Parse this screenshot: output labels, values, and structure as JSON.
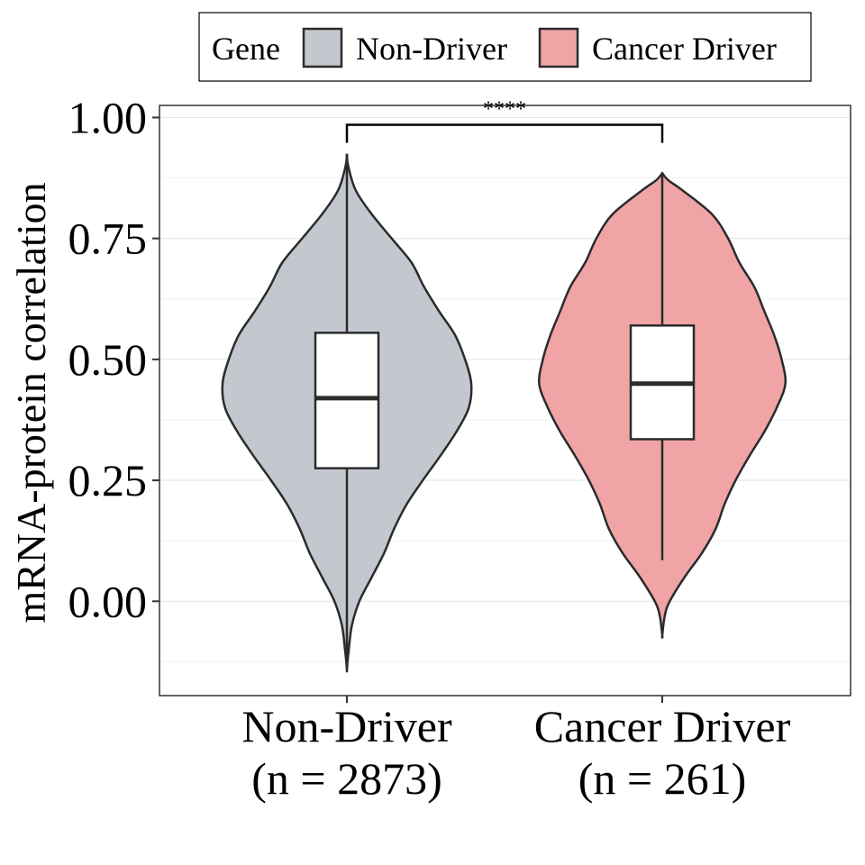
{
  "chart_data": {
    "type": "violin",
    "ylabel": "mRNA-protein correlation",
    "xlabel": "",
    "ylim": [
      -0.195,
      1.025
    ],
    "yticks": [
      0.0,
      0.25,
      0.5,
      0.75,
      1.0
    ],
    "ytick_labels": [
      "0.00",
      "0.25",
      "0.50",
      "0.75",
      "1.00"
    ],
    "grid": true,
    "legend": {
      "placement": "top",
      "title": "Gene",
      "entries": [
        {
          "label": "Non-Driver",
          "color": "#c3c8cf"
        },
        {
          "label": "Cancer Driver",
          "color": "#f0a4a6"
        }
      ]
    },
    "categories": [
      {
        "label_line1": "Non-Driver",
        "label_line2": "(n = 2873)"
      },
      {
        "label_line1": "Cancer Driver",
        "label_line2": "(n = 261)"
      }
    ],
    "series": [
      {
        "name": "Non-Driver",
        "color": "#c3c8cf",
        "n": 2873,
        "min": -0.14,
        "max": 0.925,
        "q1": 0.275,
        "median": 0.42,
        "q3": 0.555,
        "whisker_low": -0.14,
        "whisker_high": 0.925,
        "density": [
          [
            0.925,
            0.0
          ],
          [
            0.9,
            0.01
          ],
          [
            0.85,
            0.07
          ],
          [
            0.8,
            0.2
          ],
          [
            0.75,
            0.36
          ],
          [
            0.7,
            0.52
          ],
          [
            0.65,
            0.62
          ],
          [
            0.6,
            0.74
          ],
          [
            0.55,
            0.87
          ],
          [
            0.5,
            0.95
          ],
          [
            0.45,
            1.0
          ],
          [
            0.4,
            0.98
          ],
          [
            0.35,
            0.88
          ],
          [
            0.3,
            0.75
          ],
          [
            0.25,
            0.61
          ],
          [
            0.2,
            0.48
          ],
          [
            0.15,
            0.38
          ],
          [
            0.1,
            0.3
          ],
          [
            0.05,
            0.2
          ],
          [
            0.0,
            0.1
          ],
          [
            -0.05,
            0.04
          ],
          [
            -0.1,
            0.015
          ],
          [
            -0.14,
            0.0
          ]
        ]
      },
      {
        "name": "Cancer Driver",
        "color": "#f0a4a6",
        "n": 261,
        "min": -0.07,
        "max": 0.885,
        "q1": 0.335,
        "median": 0.45,
        "q3": 0.57,
        "whisker_low": 0.085,
        "whisker_high": 0.885,
        "density": [
          [
            0.885,
            0.0
          ],
          [
            0.87,
            0.05
          ],
          [
            0.85,
            0.16
          ],
          [
            0.8,
            0.4
          ],
          [
            0.75,
            0.53
          ],
          [
            0.7,
            0.62
          ],
          [
            0.65,
            0.74
          ],
          [
            0.6,
            0.82
          ],
          [
            0.55,
            0.9
          ],
          [
            0.5,
            0.96
          ],
          [
            0.45,
            0.99
          ],
          [
            0.4,
            0.92
          ],
          [
            0.35,
            0.82
          ],
          [
            0.3,
            0.7
          ],
          [
            0.25,
            0.59
          ],
          [
            0.2,
            0.5
          ],
          [
            0.15,
            0.43
          ],
          [
            0.1,
            0.32
          ],
          [
            0.05,
            0.18
          ],
          [
            0.0,
            0.06
          ],
          [
            -0.03,
            0.02
          ],
          [
            -0.07,
            0.0
          ]
        ]
      }
    ],
    "annotation": {
      "label": "****",
      "from": 0,
      "to": 1,
      "y": 0.985
    }
  }
}
